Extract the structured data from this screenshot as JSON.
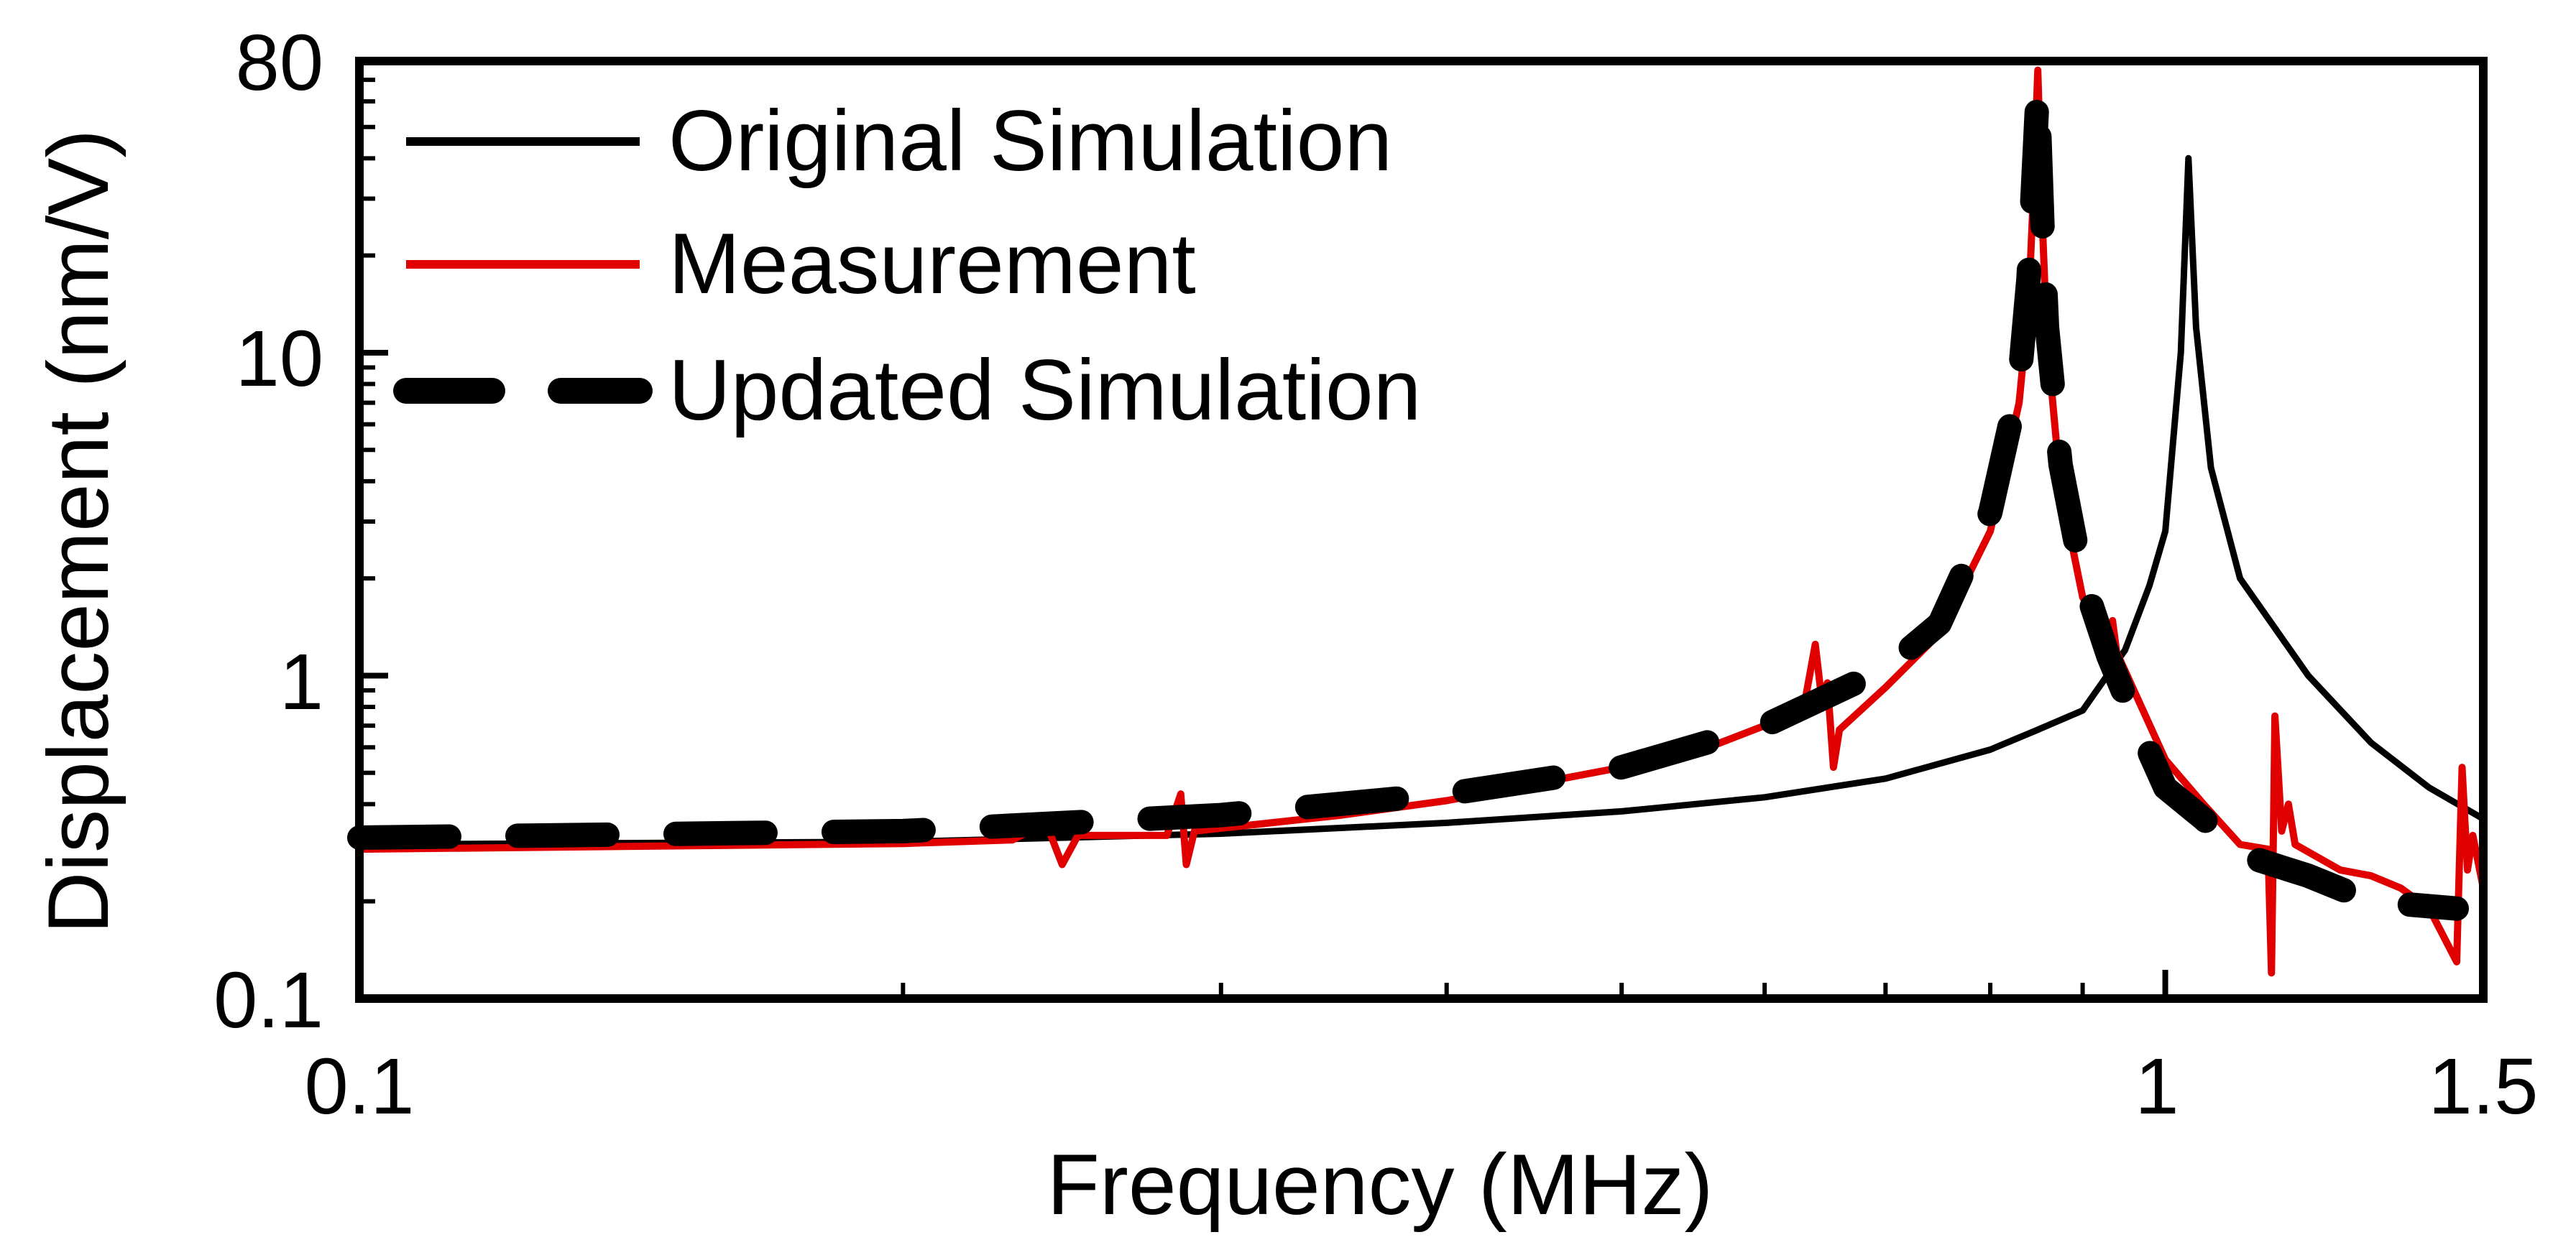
{
  "chart_data": {
    "type": "line",
    "title": "",
    "xlabel": "Frequency (MHz)",
    "ylabel": "Displacement (nm/V)",
    "xscale": "log",
    "yscale": "log",
    "xlim": [
      0.1,
      1.5
    ],
    "ylim": [
      0.1,
      80
    ],
    "xticks": [
      {
        "value": 0.1,
        "label": "0.1"
      },
      {
        "value": 1,
        "label": "1"
      },
      {
        "value": 1.5,
        "label": "1.5"
      }
    ],
    "yticks": [
      {
        "value": 0.1,
        "label": "0.1"
      },
      {
        "value": 1,
        "label": "1"
      },
      {
        "value": 10,
        "label": "10"
      },
      {
        "value": 80,
        "label": "80"
      }
    ],
    "x_minor_ticks": [
      0.2,
      0.3,
      0.4,
      0.5,
      0.6,
      0.7,
      0.8,
      0.9
    ],
    "grid": false,
    "legend_position": "top-left",
    "series": [
      {
        "name": "Original Simulation",
        "color": "#000000",
        "style": "solid",
        "points": [
          [
            0.1,
            0.3
          ],
          [
            0.2,
            0.306
          ],
          [
            0.3,
            0.324
          ],
          [
            0.4,
            0.35
          ],
          [
            0.5,
            0.38
          ],
          [
            0.6,
            0.42
          ],
          [
            0.7,
            0.48
          ],
          [
            0.8,
            0.59
          ],
          [
            0.85,
            0.68
          ],
          [
            0.9,
            0.78
          ],
          [
            0.95,
            1.2
          ],
          [
            0.98,
            1.9
          ],
          [
            1.0,
            2.8
          ],
          [
            1.02,
            10.0
          ],
          [
            1.03,
            40.0
          ],
          [
            1.04,
            12.0
          ],
          [
            1.06,
            4.4
          ],
          [
            1.1,
            2.0
          ],
          [
            1.2,
            1.0
          ],
          [
            1.3,
            0.62
          ],
          [
            1.4,
            0.45
          ],
          [
            1.5,
            0.36
          ]
        ]
      },
      {
        "name": "Measurement",
        "color": "#e00000",
        "style": "solid",
        "points": [
          [
            0.1,
            0.29
          ],
          [
            0.2,
            0.302
          ],
          [
            0.23,
            0.31
          ],
          [
            0.24,
            0.35
          ],
          [
            0.245,
            0.26
          ],
          [
            0.25,
            0.32
          ],
          [
            0.28,
            0.32
          ],
          [
            0.285,
            0.43
          ],
          [
            0.287,
            0.26
          ],
          [
            0.29,
            0.33
          ],
          [
            0.35,
            0.37
          ],
          [
            0.4,
            0.41
          ],
          [
            0.5,
            0.52
          ],
          [
            0.55,
            0.58
          ],
          [
            0.6,
            0.7
          ],
          [
            0.63,
            0.77
          ],
          [
            0.64,
            1.25
          ],
          [
            0.645,
            0.86
          ],
          [
            0.65,
            0.95
          ],
          [
            0.655,
            0.52
          ],
          [
            0.66,
            0.68
          ],
          [
            0.7,
            0.92
          ],
          [
            0.75,
            1.35
          ],
          [
            0.8,
            2.8
          ],
          [
            0.83,
            7.0
          ],
          [
            0.84,
            14.0
          ],
          [
            0.845,
            30.0
          ],
          [
            0.85,
            75.0
          ],
          [
            0.855,
            25.0
          ],
          [
            0.86,
            11.0
          ],
          [
            0.875,
            3.8
          ],
          [
            0.9,
            1.75
          ],
          [
            0.93,
            1.25
          ],
          [
            0.935,
            1.48
          ],
          [
            0.94,
            1.18
          ],
          [
            1.0,
            0.55
          ],
          [
            1.05,
            0.4
          ],
          [
            1.1,
            0.3
          ],
          [
            1.14,
            0.29
          ],
          [
            1.145,
            0.12
          ],
          [
            1.148,
            0.35
          ],
          [
            1.15,
            0.75
          ],
          [
            1.16,
            0.33
          ],
          [
            1.17,
            0.4
          ],
          [
            1.18,
            0.3
          ],
          [
            1.25,
            0.25
          ],
          [
            1.3,
            0.24
          ],
          [
            1.35,
            0.22
          ],
          [
            1.4,
            0.19
          ],
          [
            1.45,
            0.13
          ],
          [
            1.46,
            0.52
          ],
          [
            1.47,
            0.25
          ],
          [
            1.48,
            0.32
          ],
          [
            1.5,
            0.22
          ]
        ]
      },
      {
        "name": "Updated Simulation",
        "color": "#000000",
        "style": "dashed",
        "points": [
          [
            0.1,
            0.315
          ],
          [
            0.2,
            0.33
          ],
          [
            0.3,
            0.37
          ],
          [
            0.4,
            0.43
          ],
          [
            0.5,
            0.52
          ],
          [
            0.6,
            0.7
          ],
          [
            0.7,
            1.05
          ],
          [
            0.75,
            1.45
          ],
          [
            0.8,
            3.2
          ],
          [
            0.83,
            8.0
          ],
          [
            0.84,
            17.0
          ],
          [
            0.85,
            65.0
          ],
          [
            0.855,
            25.0
          ],
          [
            0.86,
            12.0
          ],
          [
            0.875,
            4.5
          ],
          [
            0.9,
            2.0
          ],
          [
            0.93,
            1.15
          ],
          [
            0.96,
            0.75
          ],
          [
            1.0,
            0.45
          ],
          [
            1.05,
            0.36
          ],
          [
            1.1,
            0.28
          ],
          [
            1.2,
            0.24
          ],
          [
            1.3,
            0.2
          ],
          [
            1.45,
            0.19
          ]
        ]
      }
    ]
  }
}
